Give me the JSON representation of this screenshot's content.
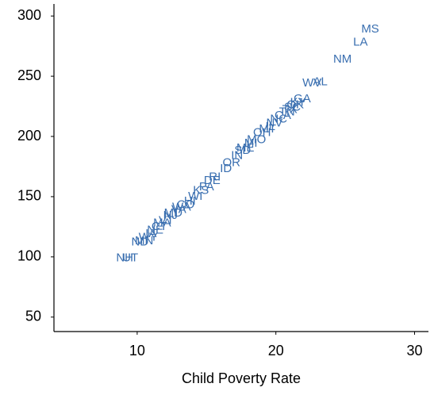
{
  "chart_data": {
    "type": "scatter",
    "x_label": "Child Poverty Rate",
    "color": "#3a6fb0",
    "xlim": [
      4,
      31
    ],
    "xticks": [
      10,
      20,
      30
    ],
    "ylim": [
      38,
      310
    ],
    "yticks": [
      50,
      100,
      150,
      200,
      250,
      300
    ],
    "point_labels": [
      "NH",
      "UT",
      "ND",
      "MN",
      "WY",
      "IA",
      "NE",
      "CT",
      "MA",
      "VT",
      "NJ",
      "MD",
      "VA",
      "WA",
      "CO",
      "HI",
      "WI",
      "KS",
      "PA",
      "DE",
      "RI",
      "ID",
      "OR",
      "IN",
      "SD",
      "ME",
      "MI",
      "MO",
      "OH",
      "MT",
      "IL",
      "NV",
      "NC",
      "CA",
      "TN",
      "TX",
      "SC",
      "OK",
      "KY",
      "GA",
      "WV",
      "AL",
      "NM",
      "LA",
      "MS"
    ],
    "x": [
      9.1,
      9.5,
      10.2,
      10.5,
      10.8,
      11.0,
      11.3,
      11.6,
      11.8,
      12.1,
      12.4,
      12.6,
      13.0,
      13.2,
      13.5,
      13.8,
      14.2,
      14.6,
      15.0,
      15.4,
      15.6,
      16.4,
      16.8,
      17.2,
      17.6,
      17.8,
      18.2,
      18.6,
      19.0,
      19.4,
      19.6,
      19.9,
      20.2,
      20.5,
      20.8,
      21.0,
      21.2,
      21.4,
      21.6,
      21.9,
      22.6,
      23.2,
      24.8,
      26.1,
      26.8
    ],
    "values": [
      99,
      99,
      112,
      113,
      116,
      119,
      122,
      125,
      128,
      130,
      134,
      136,
      139,
      141,
      143,
      146,
      150,
      155,
      158,
      163,
      166,
      173,
      178,
      184,
      188,
      190,
      194,
      197,
      203,
      206,
      208,
      211,
      214,
      217,
      220,
      222,
      224,
      226,
      228,
      231,
      244,
      245,
      264,
      278,
      289
    ]
  }
}
